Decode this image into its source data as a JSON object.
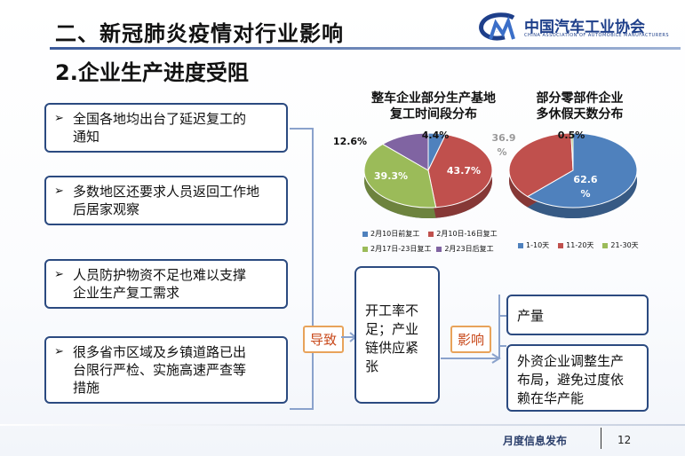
{
  "header": {
    "title": "二、新冠肺炎疫情对行业影响",
    "subtitle": "2.企业生产进度受阻",
    "logo_text": "中国汽车工业协会",
    "logo_sub": "CHINA ASSOCIATION OF AUTOMOBILE MANUFACTURERS",
    "logo_mark": "CAM"
  },
  "reasons": [
    {
      "bullet": "➢",
      "text_l1": "全国各地均出台了延迟复工的",
      "text_l2": "通知"
    },
    {
      "bullet": "➢",
      "text_l1": "多数地区还要求人员返回工作地",
      "text_l2": "后居家观察"
    },
    {
      "bullet": "➢",
      "text_l1": "人员防护物资不足也难以支撑",
      "text_l2": "企业生产复工需求"
    },
    {
      "bullet": "➢",
      "text_l1": "很多省市区域及乡镇道路已出",
      "text_l2": "台限行严检、实施高速严查等",
      "text_l3": "措施"
    }
  ],
  "flow": {
    "cause_label": "导致",
    "center_l1": "开工率不",
    "center_l2": "足；产业",
    "center_l3": "链供应紧",
    "center_l4": "张",
    "effect_label": "影响",
    "impact1": "产量",
    "impact2_l1": "外资企业调整生产",
    "impact2_l2": "布局，避免过度依",
    "impact2_l3": "赖在华产能"
  },
  "chart_data": [
    {
      "type": "pie",
      "title_l1": "整车企业部分生产基地",
      "title_l2": "复工时间段分布",
      "categories": [
        "2月10日前复工",
        "2月10日-16日复工",
        "2月17日-23日复工",
        "2月23日后复工"
      ],
      "values": [
        4.4,
        43.7,
        39.3,
        12.6
      ],
      "labels": [
        "4.4%",
        "43.7%",
        "39.3%",
        "12.6%"
      ],
      "colors": [
        "#4f81bd",
        "#c0504d",
        "#9bbb59",
        "#8064a2"
      ],
      "legend": "bottom"
    },
    {
      "type": "pie",
      "title_l1": "部分零部件企业",
      "title_l2": "多休假天数分布",
      "categories": [
        "1-10天",
        "11-20天",
        "21-30天"
      ],
      "values": [
        62.6,
        36.9,
        0.5
      ],
      "labels_l1": [
        "62.6",
        "36.9",
        "0.5%"
      ],
      "labels_l2": [
        "%",
        "%",
        ""
      ],
      "colors": [
        "#4f81bd",
        "#c0504d",
        "#9bbb59"
      ],
      "legend": "bottom"
    }
  ],
  "footer": {
    "text": "月度信息发布",
    "page": "12"
  }
}
